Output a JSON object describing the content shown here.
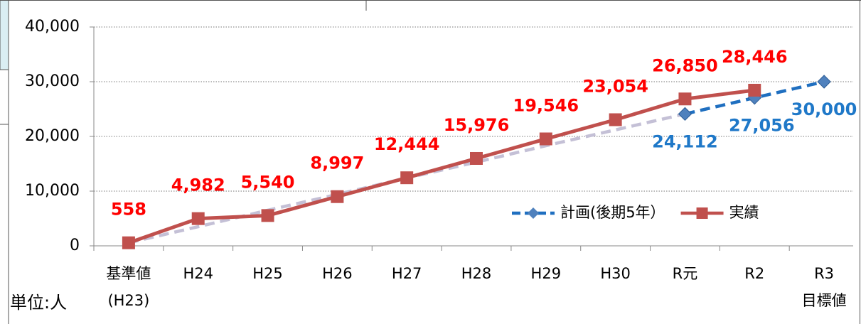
{
  "chart_data": {
    "type": "line",
    "categories": [
      "基準値\n(H23)",
      "H24",
      "H25",
      "H26",
      "H27",
      "H28",
      "H29",
      "H30",
      "R元",
      "R2",
      "R3\n目標値"
    ],
    "series": [
      {
        "color": "#c4c0d6",
        "dash": true,
        "values": [
          558,
          3500,
          6500,
          9400,
          12400,
          15300,
          18300,
          21200,
          24112,
          null,
          null
        ]
      },
      {
        "name": "計画(後期5年）",
        "color": "#1f6fc0",
        "label_color": "#1f78c8",
        "dash": true,
        "marker": "diamond",
        "values": [
          null,
          null,
          null,
          null,
          null,
          null,
          null,
          null,
          24112,
          27056,
          30000
        ],
        "value_labels": [
          null,
          null,
          null,
          null,
          null,
          null,
          null,
          null,
          "24,112",
          "27,056",
          "30,000"
        ]
      },
      {
        "name": "実績",
        "color": "#c0504d",
        "label_color": "#ff0000",
        "dash": false,
        "marker": "square",
        "values": [
          558,
          4982,
          5540,
          8997,
          12444,
          15976,
          19546,
          23054,
          26850,
          28446,
          null
        ],
        "value_labels": [
          "558",
          "4,982",
          "5,540",
          "8,997",
          "12,444",
          "15,976",
          "19,546",
          "23,054",
          "26,850",
          "28,446",
          null
        ]
      }
    ],
    "ylim": [
      0,
      40000
    ],
    "yticks": [
      0,
      {
        "value": 10000,
        "label": "10,000"
      },
      {
        "value": 20000,
        "label": "20,000"
      },
      {
        "value": 30000,
        "label": "30,000"
      },
      {
        "value": 40000,
        "label": "40,000"
      }
    ],
    "grid": true,
    "legend": "lower right",
    "annotation": "単位:人"
  }
}
